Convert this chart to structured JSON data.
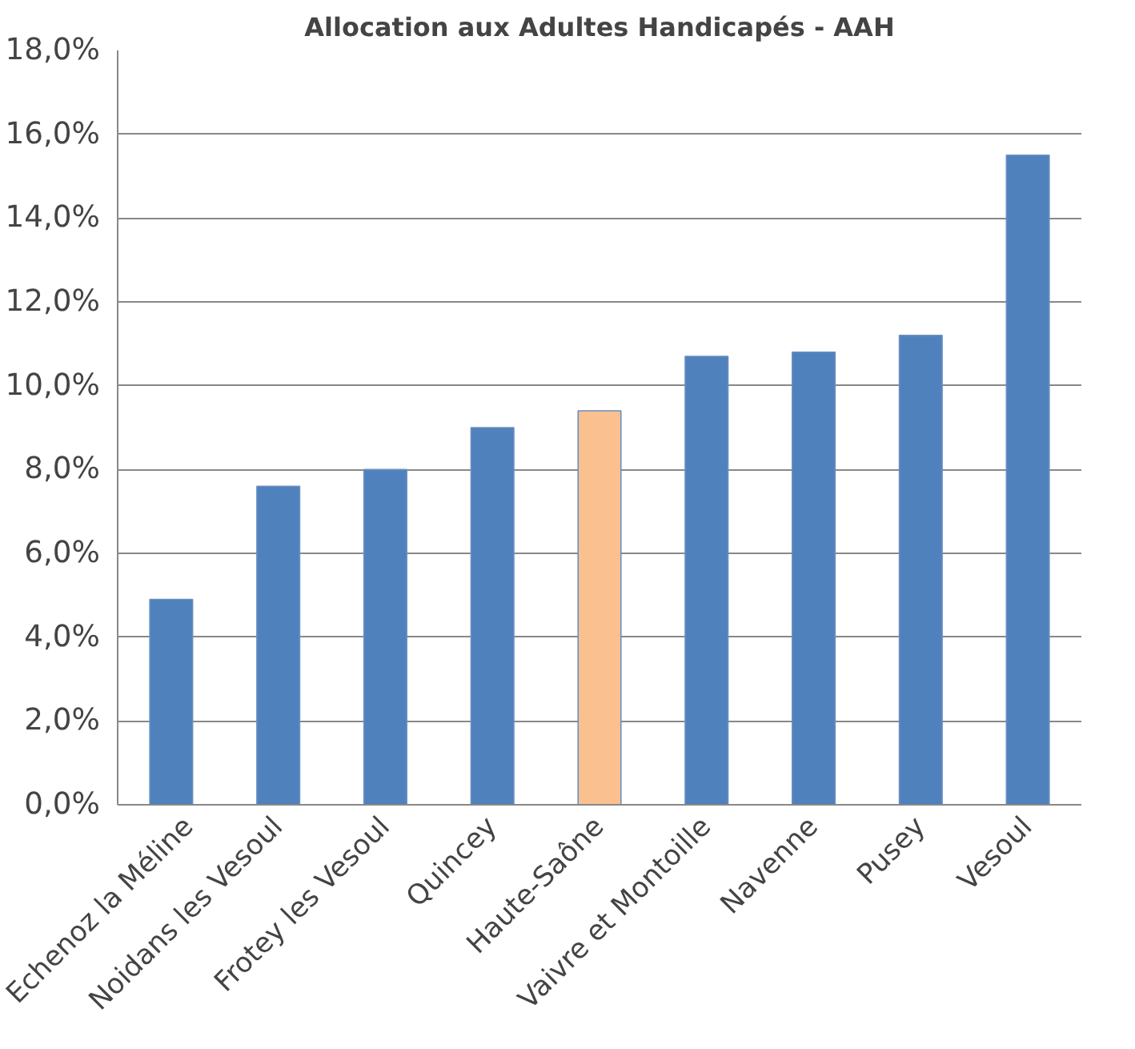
{
  "chart_data": {
    "type": "bar",
    "title": "Allocation aux Adultes Handicapés - AAH",
    "categories": [
      "Echenoz la Méline",
      "Noidans les Vesoul",
      "Frotey les Vesoul",
      "Quincey",
      "Haute-Saône",
      "Vaivre et Montoille",
      "Navenne",
      "Pusey",
      "Vesoul"
    ],
    "values": [
      4.9,
      7.6,
      8.0,
      9.0,
      9.4,
      10.7,
      10.8,
      11.2,
      15.5
    ],
    "colors": [
      "#4f81bd",
      "#4f81bd",
      "#4f81bd",
      "#4f81bd",
      "#fac090",
      "#4f81bd",
      "#4f81bd",
      "#4f81bd",
      "#4f81bd"
    ],
    "ylim": [
      0,
      18
    ],
    "yticks": [
      {
        "value": 0,
        "label": "0,0%"
      },
      {
        "value": 2,
        "label": "2,0%"
      },
      {
        "value": 4,
        "label": "4,0%"
      },
      {
        "value": 6,
        "label": "6,0%"
      },
      {
        "value": 8,
        "label": "8,0%"
      },
      {
        "value": 10,
        "label": "10,0%"
      },
      {
        "value": 12,
        "label": "12,0%"
      },
      {
        "value": 14,
        "label": "14,0%"
      },
      {
        "value": 16,
        "label": "16,0%"
      },
      {
        "value": 18,
        "label": "18,0%"
      }
    ],
    "grid": "y"
  }
}
